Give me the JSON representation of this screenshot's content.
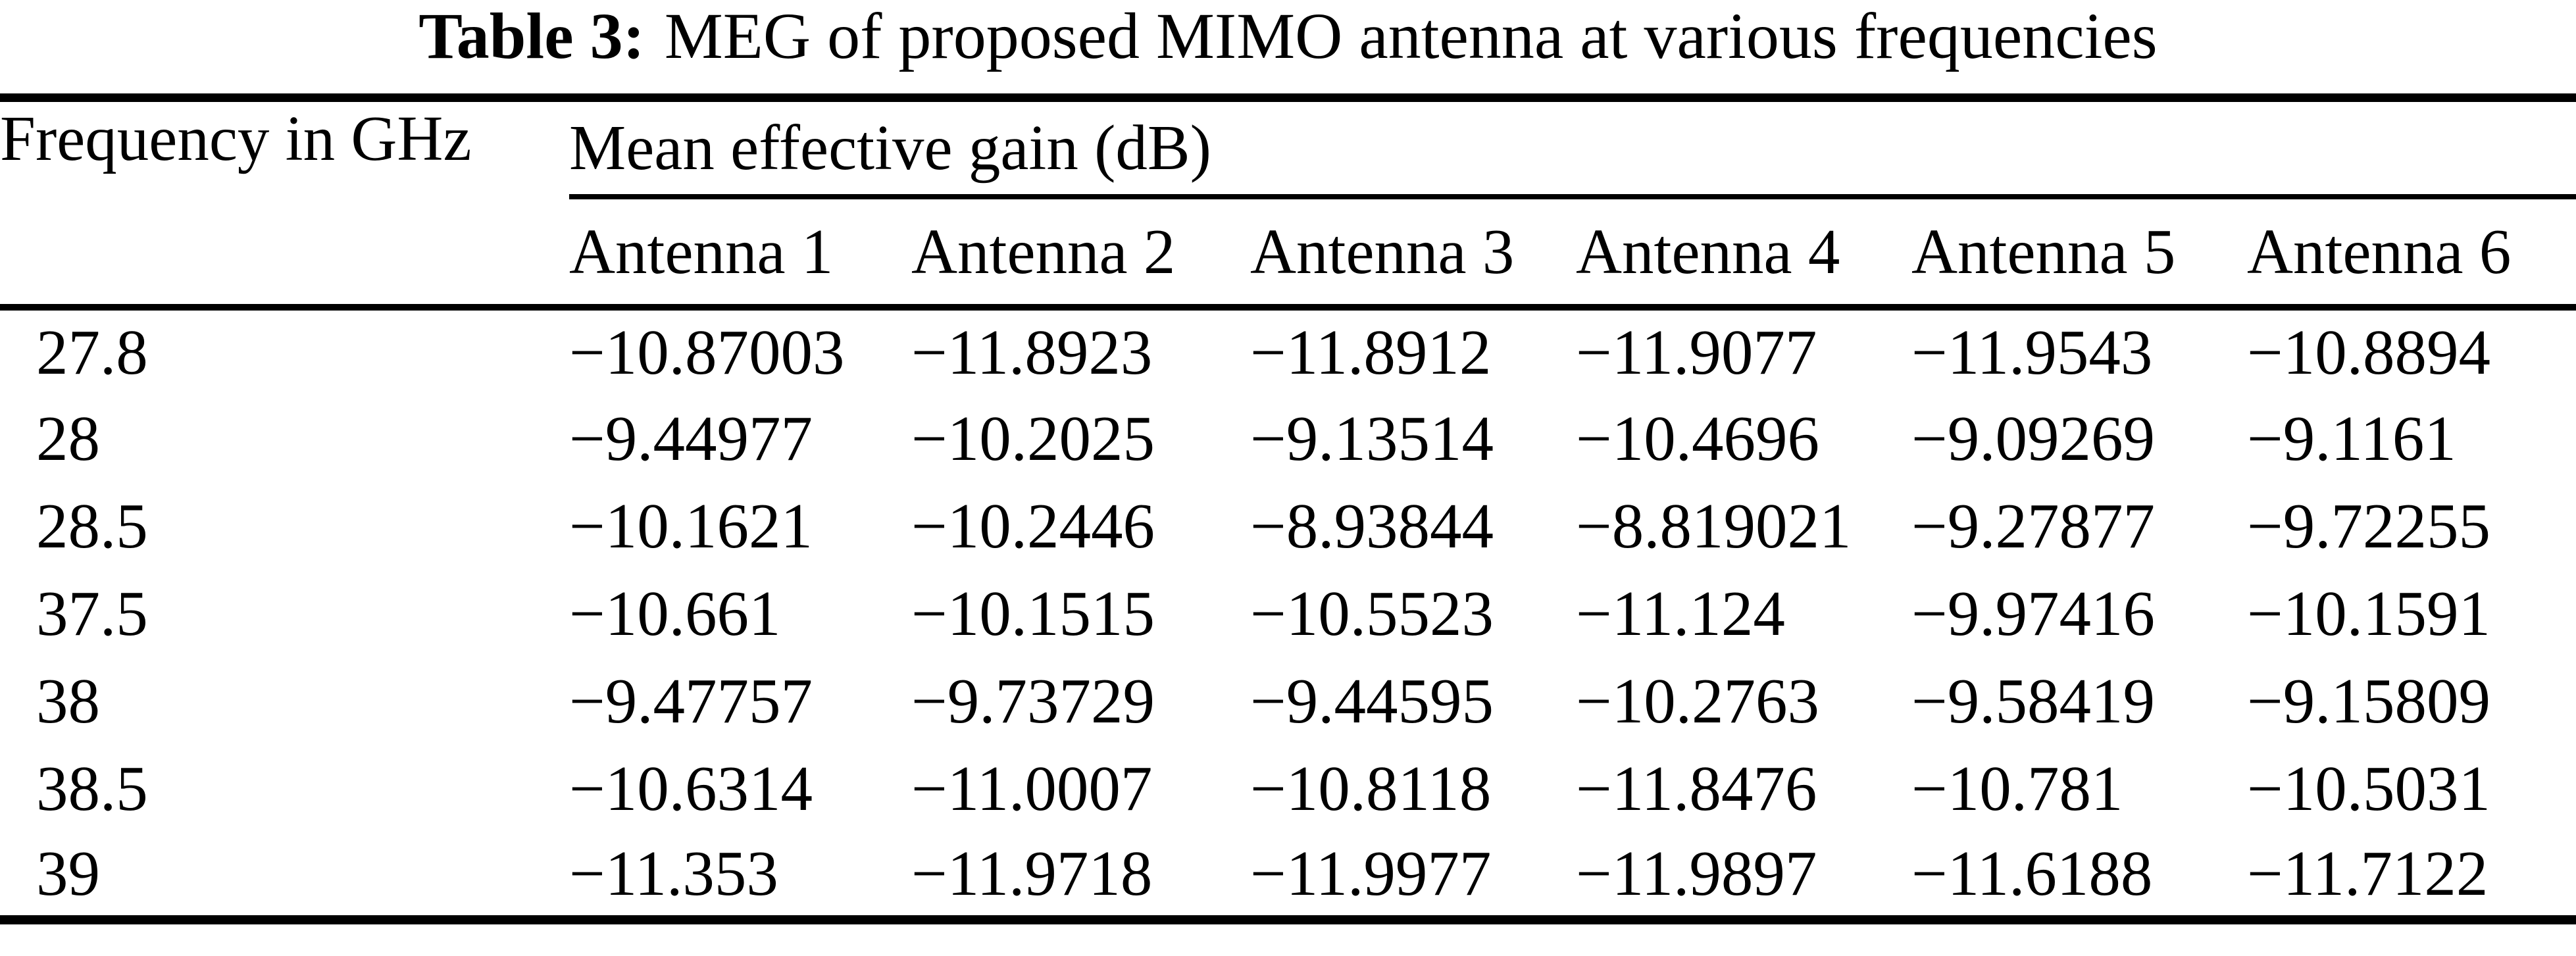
{
  "title": {
    "label": "Table 3:",
    "text": "MEG of proposed MIMO antenna at various frequencies"
  },
  "table": {
    "freq_header": "Frequency in GHz",
    "group_header": "Mean effective gain (dB)",
    "columns": [
      "Antenna 1",
      "Antenna 2",
      "Antenna 3",
      "Antenna 4",
      "Antenna 5",
      "Antenna 6"
    ],
    "rows": [
      {
        "freq": "27.8",
        "values": [
          "−10.87003",
          "−11.8923",
          "−11.8912",
          "−11.9077",
          "−11.9543",
          "−10.8894"
        ]
      },
      {
        "freq": "28",
        "values": [
          "−9.44977",
          "−10.2025",
          "−9.13514",
          "−10.4696",
          "−9.09269",
          "−9.1161"
        ]
      },
      {
        "freq": "28.5",
        "values": [
          "−10.1621",
          "−10.2446",
          "−8.93844",
          "−8.819021",
          "−9.27877",
          "−9.72255"
        ]
      },
      {
        "freq": "37.5",
        "values": [
          "−10.661",
          "−10.1515",
          "−10.5523",
          "−11.124",
          "−9.97416",
          "−10.1591"
        ]
      },
      {
        "freq": "38",
        "values": [
          "−9.47757",
          "−9.73729",
          "−9.44595",
          "−10.2763",
          "−9.58419",
          "−9.15809"
        ]
      },
      {
        "freq": "38.5",
        "values": [
          "−10.6314",
          "−11.0007",
          "−10.8118",
          "−11.8476",
          "−10.781",
          "−10.5031"
        ]
      },
      {
        "freq": "39",
        "values": [
          "−11.353",
          "−11.9718",
          "−11.9977",
          "−11.9897",
          "−11.6188",
          "−11.7122"
        ]
      }
    ]
  },
  "colors": {
    "text": "#000000",
    "background": "#ffffff",
    "rule": "#000000"
  }
}
